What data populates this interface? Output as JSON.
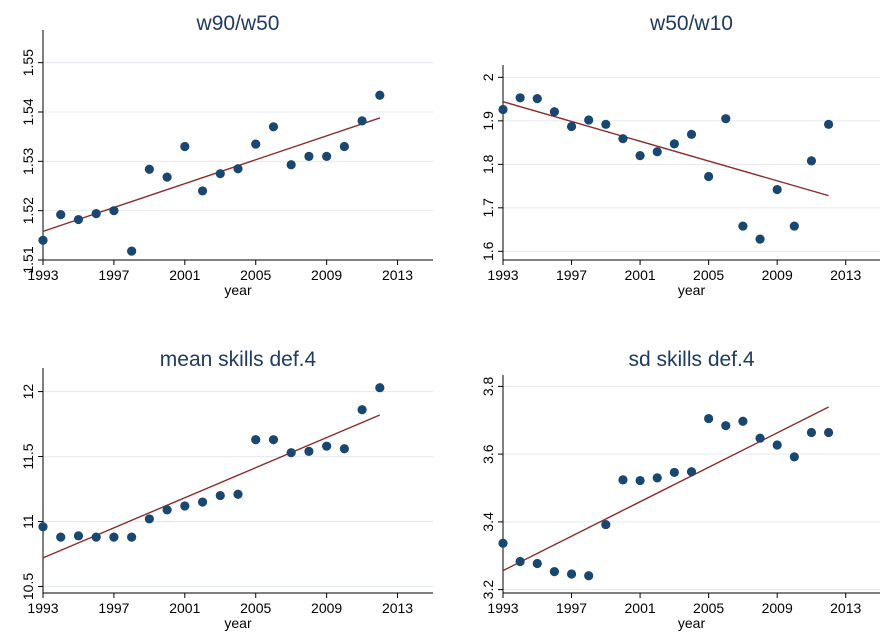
{
  "colors": {
    "points": "#1a476f",
    "fit_line": "#8b2b2b",
    "title": "#1f3b63",
    "grid": "#e4e9ee"
  },
  "chart_data": [
    {
      "type": "scatter",
      "title": "w90/w50",
      "xlabel": "year",
      "ylabel": "",
      "grid": true,
      "xlim": [
        1993,
        2015
      ],
      "ylim": [
        1.51,
        1.555
      ],
      "xticks": [
        1993,
        1997,
        2001,
        2005,
        2009,
        2013
      ],
      "yticks": [
        1.51,
        1.52,
        1.53,
        1.54,
        1.55
      ],
      "ytick_labels": [
        "1.51",
        "1.52",
        "1.53",
        "1.54",
        "1.55"
      ],
      "x": [
        1993,
        1994,
        1995,
        1996,
        1997,
        1998,
        1999,
        2000,
        2001,
        2002,
        2003,
        2004,
        2005,
        2006,
        2007,
        2008,
        2009,
        2010,
        2011,
        2012
      ],
      "y": [
        1.514,
        1.5192,
        1.5182,
        1.5194,
        1.52,
        1.5118,
        1.5284,
        1.5268,
        1.533,
        1.524,
        1.5275,
        1.5285,
        1.5335,
        1.537,
        1.5293,
        1.531,
        1.531,
        1.533,
        1.5382,
        1.5434
      ],
      "fit": {
        "x": [
          1993,
          2012
        ],
        "y": [
          1.5158,
          1.5388
        ]
      }
    },
    {
      "type": "scatter",
      "title": "w50/w10",
      "xlabel": "year",
      "ylabel": "",
      "grid": true,
      "xlim": [
        1993,
        2015
      ],
      "ylim": [
        1.58,
        2.01
      ],
      "xticks": [
        1993,
        1997,
        2001,
        2005,
        2009,
        2013
      ],
      "yticks": [
        1.6,
        1.7,
        1.8,
        1.9,
        2
      ],
      "ytick_labels": [
        "1.6",
        "1.7",
        "1.8",
        "1.9",
        "2"
      ],
      "x": [
        1993,
        1994,
        1995,
        1996,
        1997,
        1998,
        1999,
        2000,
        2001,
        2002,
        2003,
        2004,
        2005,
        2006,
        2007,
        2008,
        2009,
        2010,
        2011,
        2012
      ],
      "y": [
        1.926,
        1.953,
        1.951,
        1.921,
        1.887,
        1.902,
        1.892,
        1.859,
        1.82,
        1.829,
        1.847,
        1.869,
        1.772,
        1.905,
        1.658,
        1.628,
        1.742,
        1.658,
        1.808,
        1.892
      ],
      "fit": {
        "x": [
          1993,
          2012
        ],
        "y": [
          1.944,
          1.728
        ]
      }
    },
    {
      "type": "scatter",
      "title": "mean skills def.4",
      "xlabel": "year",
      "ylabel": "",
      "grid": true,
      "xlim": [
        1993,
        2015
      ],
      "ylim": [
        10.45,
        12.12
      ],
      "xticks": [
        1993,
        1997,
        2001,
        2005,
        2009,
        2013
      ],
      "yticks": [
        10.5,
        11,
        11.5,
        12
      ],
      "ytick_labels": [
        "10.5",
        "11",
        "11.5",
        "12"
      ],
      "x": [
        1993,
        1994,
        1995,
        1996,
        1997,
        1998,
        1999,
        2000,
        2001,
        2002,
        2003,
        2004,
        2005,
        2006,
        2007,
        2008,
        2009,
        2010,
        2011,
        2012
      ],
      "y": [
        10.96,
        10.88,
        10.89,
        10.88,
        10.88,
        10.88,
        11.02,
        11.09,
        11.12,
        11.15,
        11.2,
        11.21,
        11.63,
        11.63,
        11.53,
        11.54,
        11.58,
        11.56,
        11.86,
        12.03
      ],
      "fit": {
        "x": [
          1993,
          2012
        ],
        "y": [
          10.72,
          11.82
        ]
      }
    },
    {
      "type": "scatter",
      "title": "sd skills def.4",
      "xlabel": "year",
      "ylabel": "",
      "grid": true,
      "xlim": [
        1993,
        2015
      ],
      "ylim": [
        3.19,
        3.81
      ],
      "xticks": [
        1993,
        1997,
        2001,
        2005,
        2009,
        2013
      ],
      "yticks": [
        3.2,
        3.4,
        3.6,
        3.8
      ],
      "ytick_labels": [
        "3.2",
        "3.4",
        "3.6",
        "3.8"
      ],
      "x": [
        1993,
        1994,
        1995,
        1996,
        1997,
        1998,
        1999,
        2000,
        2001,
        2002,
        2003,
        2004,
        2005,
        2006,
        2007,
        2008,
        2009,
        2010,
        2011,
        2012
      ],
      "y": [
        3.337,
        3.283,
        3.277,
        3.253,
        3.246,
        3.241,
        3.392,
        3.524,
        3.522,
        3.53,
        3.546,
        3.548,
        3.705,
        3.684,
        3.697,
        3.647,
        3.627,
        3.592,
        3.664,
        3.664
      ],
      "fit": {
        "x": [
          1993,
          2012
        ],
        "y": [
          3.256,
          3.739
        ]
      }
    }
  ]
}
